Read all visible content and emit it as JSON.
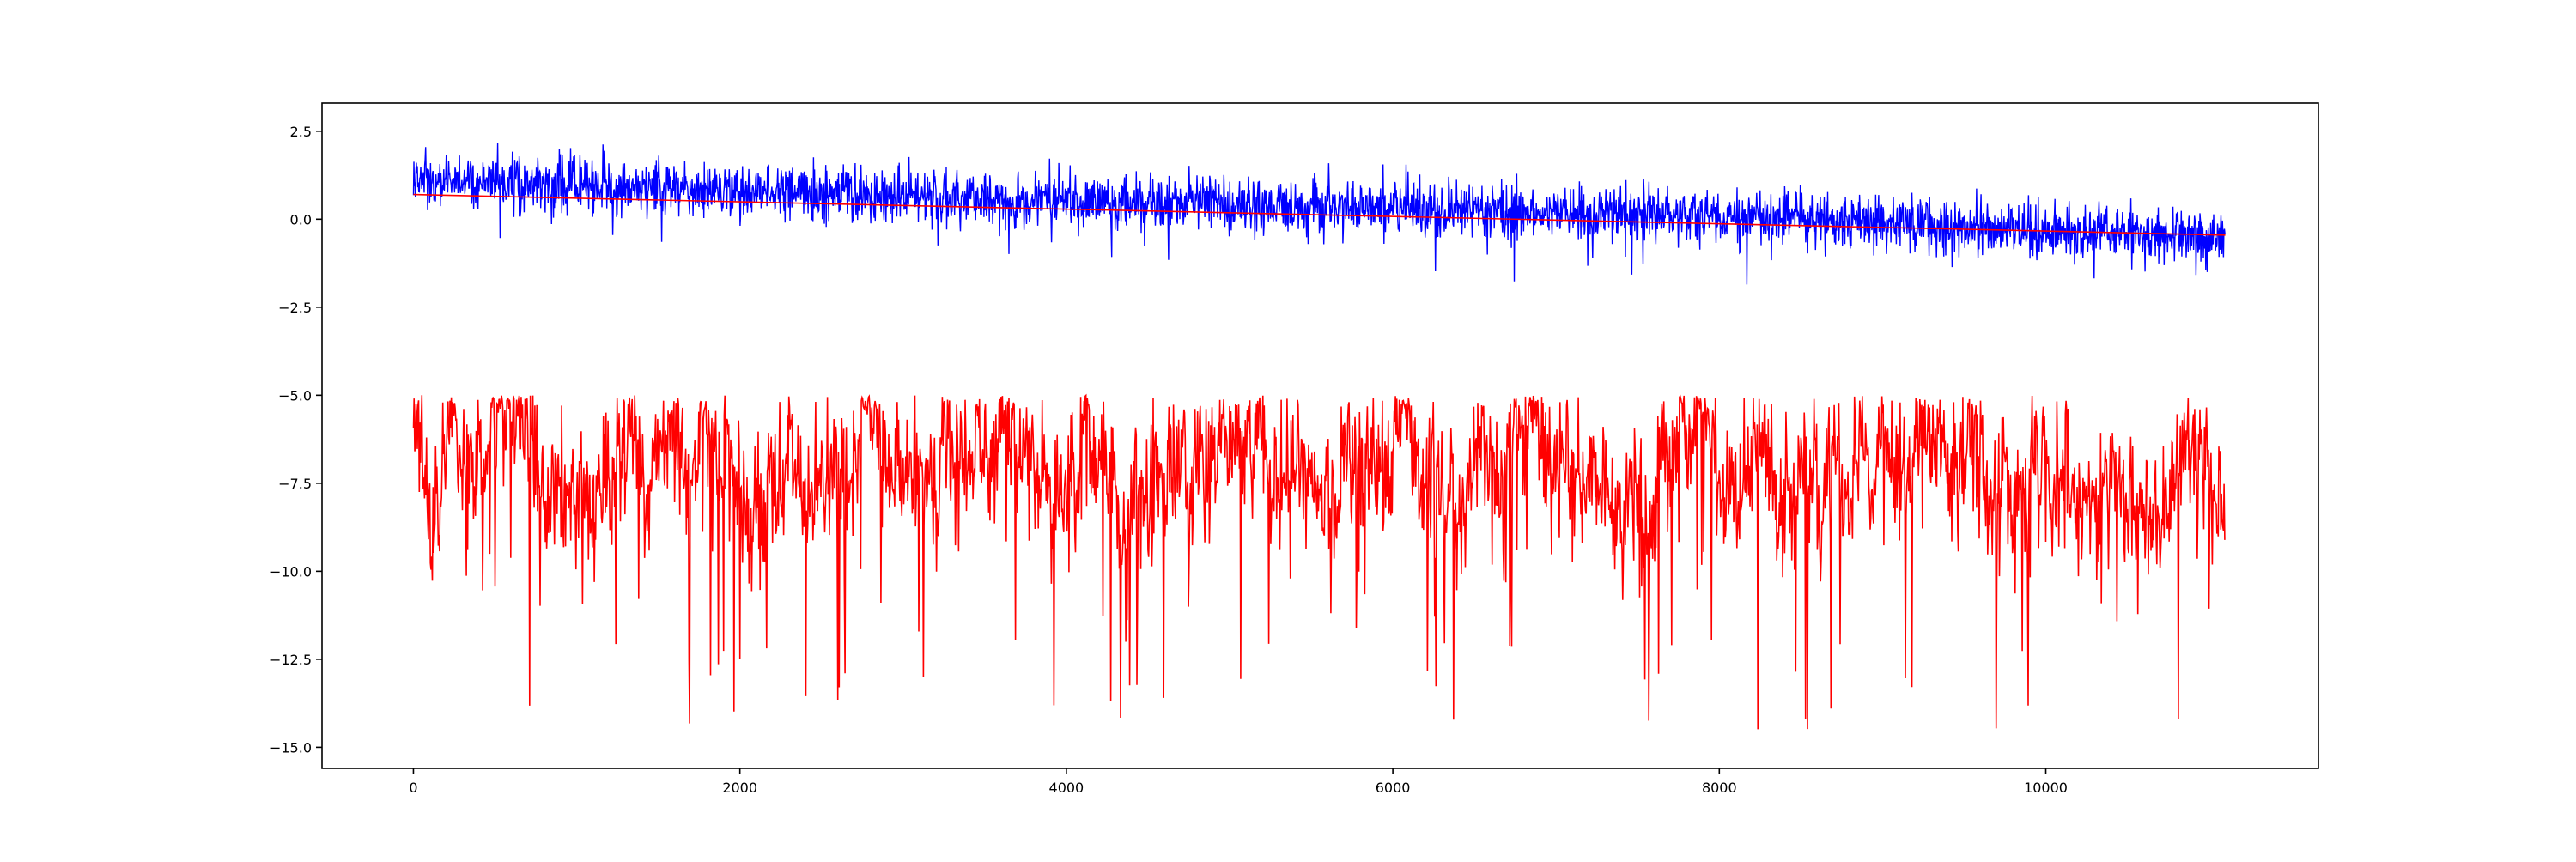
{
  "chart_data": {
    "type": "line",
    "title": "",
    "xlabel": "",
    "ylabel": "",
    "xlim": [
      -560,
      11670
    ],
    "ylim": [
      -15.6,
      3.3
    ],
    "x_ticks": [
      0,
      2000,
      4000,
      6000,
      8000,
      10000
    ],
    "x_tick_labels": [
      "0",
      "2000",
      "4000",
      "6000",
      "8000",
      "10000"
    ],
    "y_ticks": [
      2.5,
      0.0,
      -2.5,
      -5.0,
      -7.5,
      -10.0,
      -12.5,
      -15.0
    ],
    "y_tick_labels": [
      "2.5",
      "0.0",
      "−2.5",
      "−5.0",
      "−7.5",
      "−10.0",
      "−12.5",
      "−15.0"
    ],
    "grid": false,
    "legend": "none",
    "n_points": 11100,
    "series": [
      {
        "color": "#0000ff",
        "style": "noisy band around a slowly declining mean",
        "approx_center_points": [
          [
            0,
            1.1
          ],
          [
            2000,
            0.8
          ],
          [
            4000,
            0.5
          ],
          [
            6000,
            0.3
          ],
          [
            8000,
            0.1
          ],
          [
            10000,
            -0.3
          ],
          [
            11100,
            -0.5
          ]
        ],
        "approx_band_halfwidth": 0.55
      },
      {
        "color": "#ff0000",
        "style": "thin trend line",
        "points": [
          [
            0,
            0.7
          ],
          [
            11100,
            -0.45
          ]
        ]
      },
      {
        "color": "#ff0000",
        "style": "noisy signal",
        "approx_baseline": -7.0,
        "approx_upper_envelope": -5.5,
        "approx_lower_spikes_to": -14.5,
        "approx_peak": -4.6
      }
    ]
  }
}
